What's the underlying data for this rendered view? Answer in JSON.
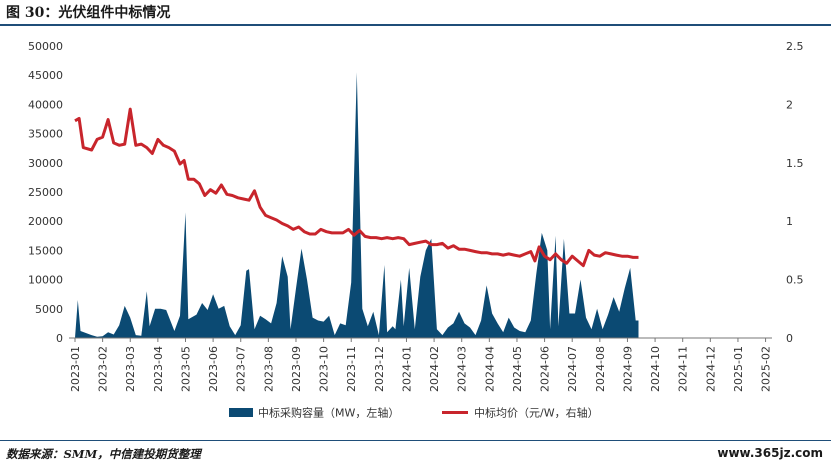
{
  "figure": {
    "title": "图 30：光伏组件中标情况",
    "source": "数据来源：SMM，中信建投期货整理",
    "watermark": "www.365jz.com"
  },
  "colors": {
    "area": "#0b4a73",
    "line": "#c8252c",
    "rule": "#1f4e79"
  },
  "chart_data": {
    "type": "area",
    "x_ticks": [
      "2023-01",
      "2023-02",
      "2023-03",
      "2023-04",
      "2023-05",
      "2023-06",
      "2023-07",
      "2023-08",
      "2023-09",
      "2023-10",
      "2023-11",
      "2023-12",
      "2024-01",
      "2024-02",
      "2024-03",
      "2024-04",
      "2024-05",
      "2024-06",
      "2024-07",
      "2024-08",
      "2024-09",
      "2024-10",
      "2024-11",
      "2024-12",
      "2025-01",
      "2025-02"
    ],
    "y_left": {
      "ticks": [
        0,
        5000,
        10000,
        15000,
        20000,
        25000,
        30000,
        35000,
        40000,
        45000,
        50000
      ],
      "lim": [
        0,
        50000
      ]
    },
    "y_right": {
      "ticks": [
        0,
        0.5,
        1,
        1.5,
        2,
        2.5
      ],
      "lim": [
        0,
        2.5
      ]
    },
    "grid": false,
    "legend_position": "bottom",
    "series": [
      {
        "name": "中标采购容量（MW，左轴）",
        "axis": "left",
        "kind": "area",
        "points": [
          [
            0,
            0
          ],
          [
            0.1,
            6500
          ],
          [
            0.2,
            1200
          ],
          [
            0.6,
            500
          ],
          [
            0.8,
            200
          ],
          [
            1.0,
            300
          ],
          [
            1.2,
            1000
          ],
          [
            1.4,
            600
          ],
          [
            1.6,
            2200
          ],
          [
            1.8,
            5500
          ],
          [
            2.0,
            3500
          ],
          [
            2.2,
            500
          ],
          [
            2.4,
            400
          ],
          [
            2.6,
            8000
          ],
          [
            2.7,
            2000
          ],
          [
            2.9,
            5000
          ],
          [
            3.1,
            5000
          ],
          [
            3.3,
            4800
          ],
          [
            3.6,
            1200
          ],
          [
            3.8,
            3800
          ],
          [
            4.0,
            21500
          ],
          [
            4.1,
            3200
          ],
          [
            4.4,
            4000
          ],
          [
            4.6,
            6000
          ],
          [
            4.8,
            4800
          ],
          [
            5.0,
            7500
          ],
          [
            5.2,
            5000
          ],
          [
            5.4,
            5500
          ],
          [
            5.6,
            2000
          ],
          [
            5.8,
            500
          ],
          [
            6.0,
            2200
          ],
          [
            6.2,
            11500
          ],
          [
            6.3,
            11800
          ],
          [
            6.5,
            1500
          ],
          [
            6.7,
            3800
          ],
          [
            6.9,
            3200
          ],
          [
            7.1,
            2500
          ],
          [
            7.3,
            6000
          ],
          [
            7.5,
            14000
          ],
          [
            7.7,
            10500
          ],
          [
            7.8,
            1500
          ],
          [
            8.0,
            8500
          ],
          [
            8.2,
            15300
          ],
          [
            8.4,
            10000
          ],
          [
            8.6,
            3500
          ],
          [
            8.8,
            3000
          ],
          [
            9.0,
            2800
          ],
          [
            9.2,
            3800
          ],
          [
            9.4,
            500
          ],
          [
            9.6,
            2500
          ],
          [
            9.8,
            2200
          ],
          [
            10.0,
            9500
          ],
          [
            10.2,
            45500
          ],
          [
            10.4,
            5000
          ],
          [
            10.6,
            2000
          ],
          [
            10.8,
            4500
          ],
          [
            11.0,
            500
          ],
          [
            11.2,
            12500
          ],
          [
            11.3,
            1000
          ],
          [
            11.5,
            2000
          ],
          [
            11.6,
            1500
          ],
          [
            11.8,
            10000
          ],
          [
            11.9,
            2000
          ],
          [
            12.1,
            12000
          ],
          [
            12.3,
            1500
          ],
          [
            12.5,
            10500
          ],
          [
            12.7,
            15000
          ],
          [
            12.9,
            17000
          ],
          [
            13.1,
            1500
          ],
          [
            13.3,
            500
          ],
          [
            13.5,
            1800
          ],
          [
            13.7,
            2500
          ],
          [
            13.9,
            4500
          ],
          [
            14.1,
            2500
          ],
          [
            14.3,
            1800
          ],
          [
            14.5,
            500
          ],
          [
            14.7,
            3000
          ],
          [
            14.9,
            9000
          ],
          [
            15.1,
            4200
          ],
          [
            15.3,
            2500
          ],
          [
            15.5,
            1000
          ],
          [
            15.7,
            3500
          ],
          [
            15.9,
            1800
          ],
          [
            16.1,
            1200
          ],
          [
            16.3,
            1000
          ],
          [
            16.5,
            3000
          ],
          [
            16.7,
            11000
          ],
          [
            16.9,
            18000
          ],
          [
            17.1,
            15000
          ],
          [
            17.2,
            1500
          ],
          [
            17.4,
            17500
          ],
          [
            17.5,
            2000
          ],
          [
            17.7,
            17000
          ],
          [
            17.9,
            4200
          ],
          [
            18.1,
            4200
          ],
          [
            18.3,
            10000
          ],
          [
            18.5,
            3500
          ],
          [
            18.7,
            1500
          ],
          [
            18.9,
            5000
          ],
          [
            19.1,
            1500
          ],
          [
            19.3,
            4000
          ],
          [
            19.5,
            7000
          ],
          [
            19.7,
            4500
          ],
          [
            19.9,
            8500
          ],
          [
            20.1,
            12000
          ],
          [
            20.3,
            3000
          ],
          [
            20.4,
            3000
          ],
          [
            20.4,
            0
          ]
        ]
      },
      {
        "name": "中标均价（元/W，右轴）",
        "axis": "right",
        "kind": "line",
        "points": [
          [
            0,
            1.86
          ],
          [
            0.15,
            1.88
          ],
          [
            0.3,
            1.63
          ],
          [
            0.6,
            1.61
          ],
          [
            0.8,
            1.7
          ],
          [
            1.0,
            1.72
          ],
          [
            1.2,
            1.87
          ],
          [
            1.4,
            1.67
          ],
          [
            1.6,
            1.65
          ],
          [
            1.8,
            1.66
          ],
          [
            2.0,
            1.96
          ],
          [
            2.2,
            1.65
          ],
          [
            2.4,
            1.66
          ],
          [
            2.6,
            1.63
          ],
          [
            2.8,
            1.58
          ],
          [
            3.0,
            1.7
          ],
          [
            3.2,
            1.65
          ],
          [
            3.4,
            1.63
          ],
          [
            3.6,
            1.6
          ],
          [
            3.8,
            1.49
          ],
          [
            3.95,
            1.52
          ],
          [
            4.1,
            1.36
          ],
          [
            4.3,
            1.36
          ],
          [
            4.5,
            1.32
          ],
          [
            4.7,
            1.22
          ],
          [
            4.9,
            1.27
          ],
          [
            5.1,
            1.24
          ],
          [
            5.3,
            1.31
          ],
          [
            5.5,
            1.23
          ],
          [
            5.7,
            1.22
          ],
          [
            5.9,
            1.2
          ],
          [
            6.1,
            1.19
          ],
          [
            6.3,
            1.18
          ],
          [
            6.5,
            1.26
          ],
          [
            6.7,
            1.12
          ],
          [
            6.9,
            1.05
          ],
          [
            7.1,
            1.03
          ],
          [
            7.3,
            1.01
          ],
          [
            7.5,
            0.98
          ],
          [
            7.7,
            0.96
          ],
          [
            7.9,
            0.93
          ],
          [
            8.1,
            0.95
          ],
          [
            8.3,
            0.91
          ],
          [
            8.5,
            0.89
          ],
          [
            8.7,
            0.89
          ],
          [
            8.9,
            0.93
          ],
          [
            9.1,
            0.91
          ],
          [
            9.3,
            0.9
          ],
          [
            9.5,
            0.9
          ],
          [
            9.7,
            0.9
          ],
          [
            9.9,
            0.93
          ],
          [
            10.1,
            0.88
          ],
          [
            10.3,
            0.92
          ],
          [
            10.5,
            0.87
          ],
          [
            10.7,
            0.86
          ],
          [
            10.9,
            0.86
          ],
          [
            11.1,
            0.85
          ],
          [
            11.3,
            0.86
          ],
          [
            11.5,
            0.85
          ],
          [
            11.7,
            0.86
          ],
          [
            11.9,
            0.85
          ],
          [
            12.1,
            0.8
          ],
          [
            12.3,
            0.81
          ],
          [
            12.5,
            0.82
          ],
          [
            12.7,
            0.83
          ],
          [
            12.9,
            0.8
          ],
          [
            13.1,
            0.8
          ],
          [
            13.3,
            0.81
          ],
          [
            13.5,
            0.77
          ],
          [
            13.7,
            0.79
          ],
          [
            13.9,
            0.76
          ],
          [
            14.1,
            0.76
          ],
          [
            14.3,
            0.75
          ],
          [
            14.5,
            0.74
          ],
          [
            14.7,
            0.73
          ],
          [
            14.9,
            0.73
          ],
          [
            15.1,
            0.72
          ],
          [
            15.3,
            0.72
          ],
          [
            15.5,
            0.71
          ],
          [
            15.7,
            0.72
          ],
          [
            15.9,
            0.71
          ],
          [
            16.1,
            0.7
          ],
          [
            16.3,
            0.72
          ],
          [
            16.5,
            0.74
          ],
          [
            16.65,
            0.66
          ],
          [
            16.8,
            0.78
          ],
          [
            17.0,
            0.7
          ],
          [
            17.2,
            0.67
          ],
          [
            17.4,
            0.72
          ],
          [
            17.6,
            0.67
          ],
          [
            17.8,
            0.64
          ],
          [
            18.0,
            0.7
          ],
          [
            18.2,
            0.66
          ],
          [
            18.4,
            0.62
          ],
          [
            18.6,
            0.75
          ],
          [
            18.8,
            0.71
          ],
          [
            19.0,
            0.7
          ],
          [
            19.2,
            0.73
          ],
          [
            19.4,
            0.72
          ],
          [
            19.6,
            0.71
          ],
          [
            19.8,
            0.7
          ],
          [
            20.0,
            0.7
          ],
          [
            20.2,
            0.69
          ],
          [
            20.4,
            0.69
          ]
        ]
      }
    ]
  }
}
